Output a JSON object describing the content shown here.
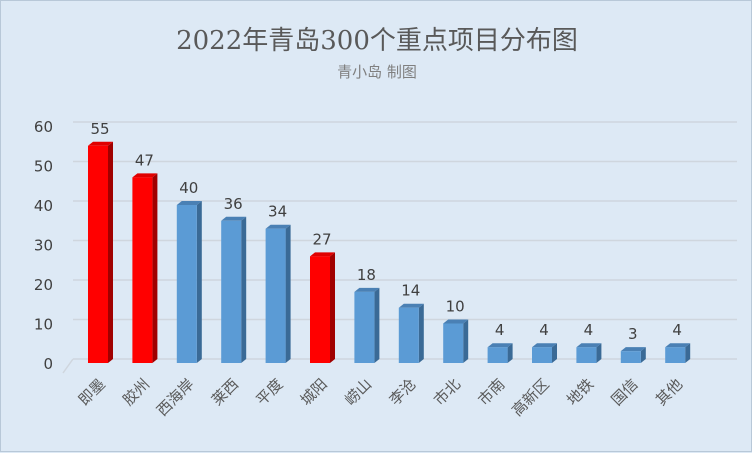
{
  "chart_data": {
    "type": "bar",
    "title": "2022年青岛300个重点项目分布图",
    "subtitle": "青小岛 制图",
    "categories": [
      "即墨",
      "胶州",
      "西海岸",
      "莱西",
      "平度",
      "城阳",
      "崂山",
      "李沧",
      "市北",
      "市南",
      "高新区",
      "地铁",
      "国信",
      "其他"
    ],
    "values": [
      55,
      47,
      40,
      36,
      34,
      27,
      18,
      14,
      10,
      4,
      4,
      4,
      3,
      4
    ],
    "highlighted": [
      true,
      true,
      false,
      false,
      false,
      true,
      false,
      false,
      false,
      false,
      false,
      false,
      false,
      false
    ],
    "ylim": [
      0,
      60
    ],
    "yticks": [
      0,
      10,
      20,
      30,
      40,
      50,
      60
    ],
    "grid": true,
    "colors": {
      "highlight": "#ff0000",
      "highlight_side": "#a00000",
      "normal": "#5b9bd5",
      "normal_side": "#3a6a96",
      "normal_top": "#4a80b4"
    }
  }
}
